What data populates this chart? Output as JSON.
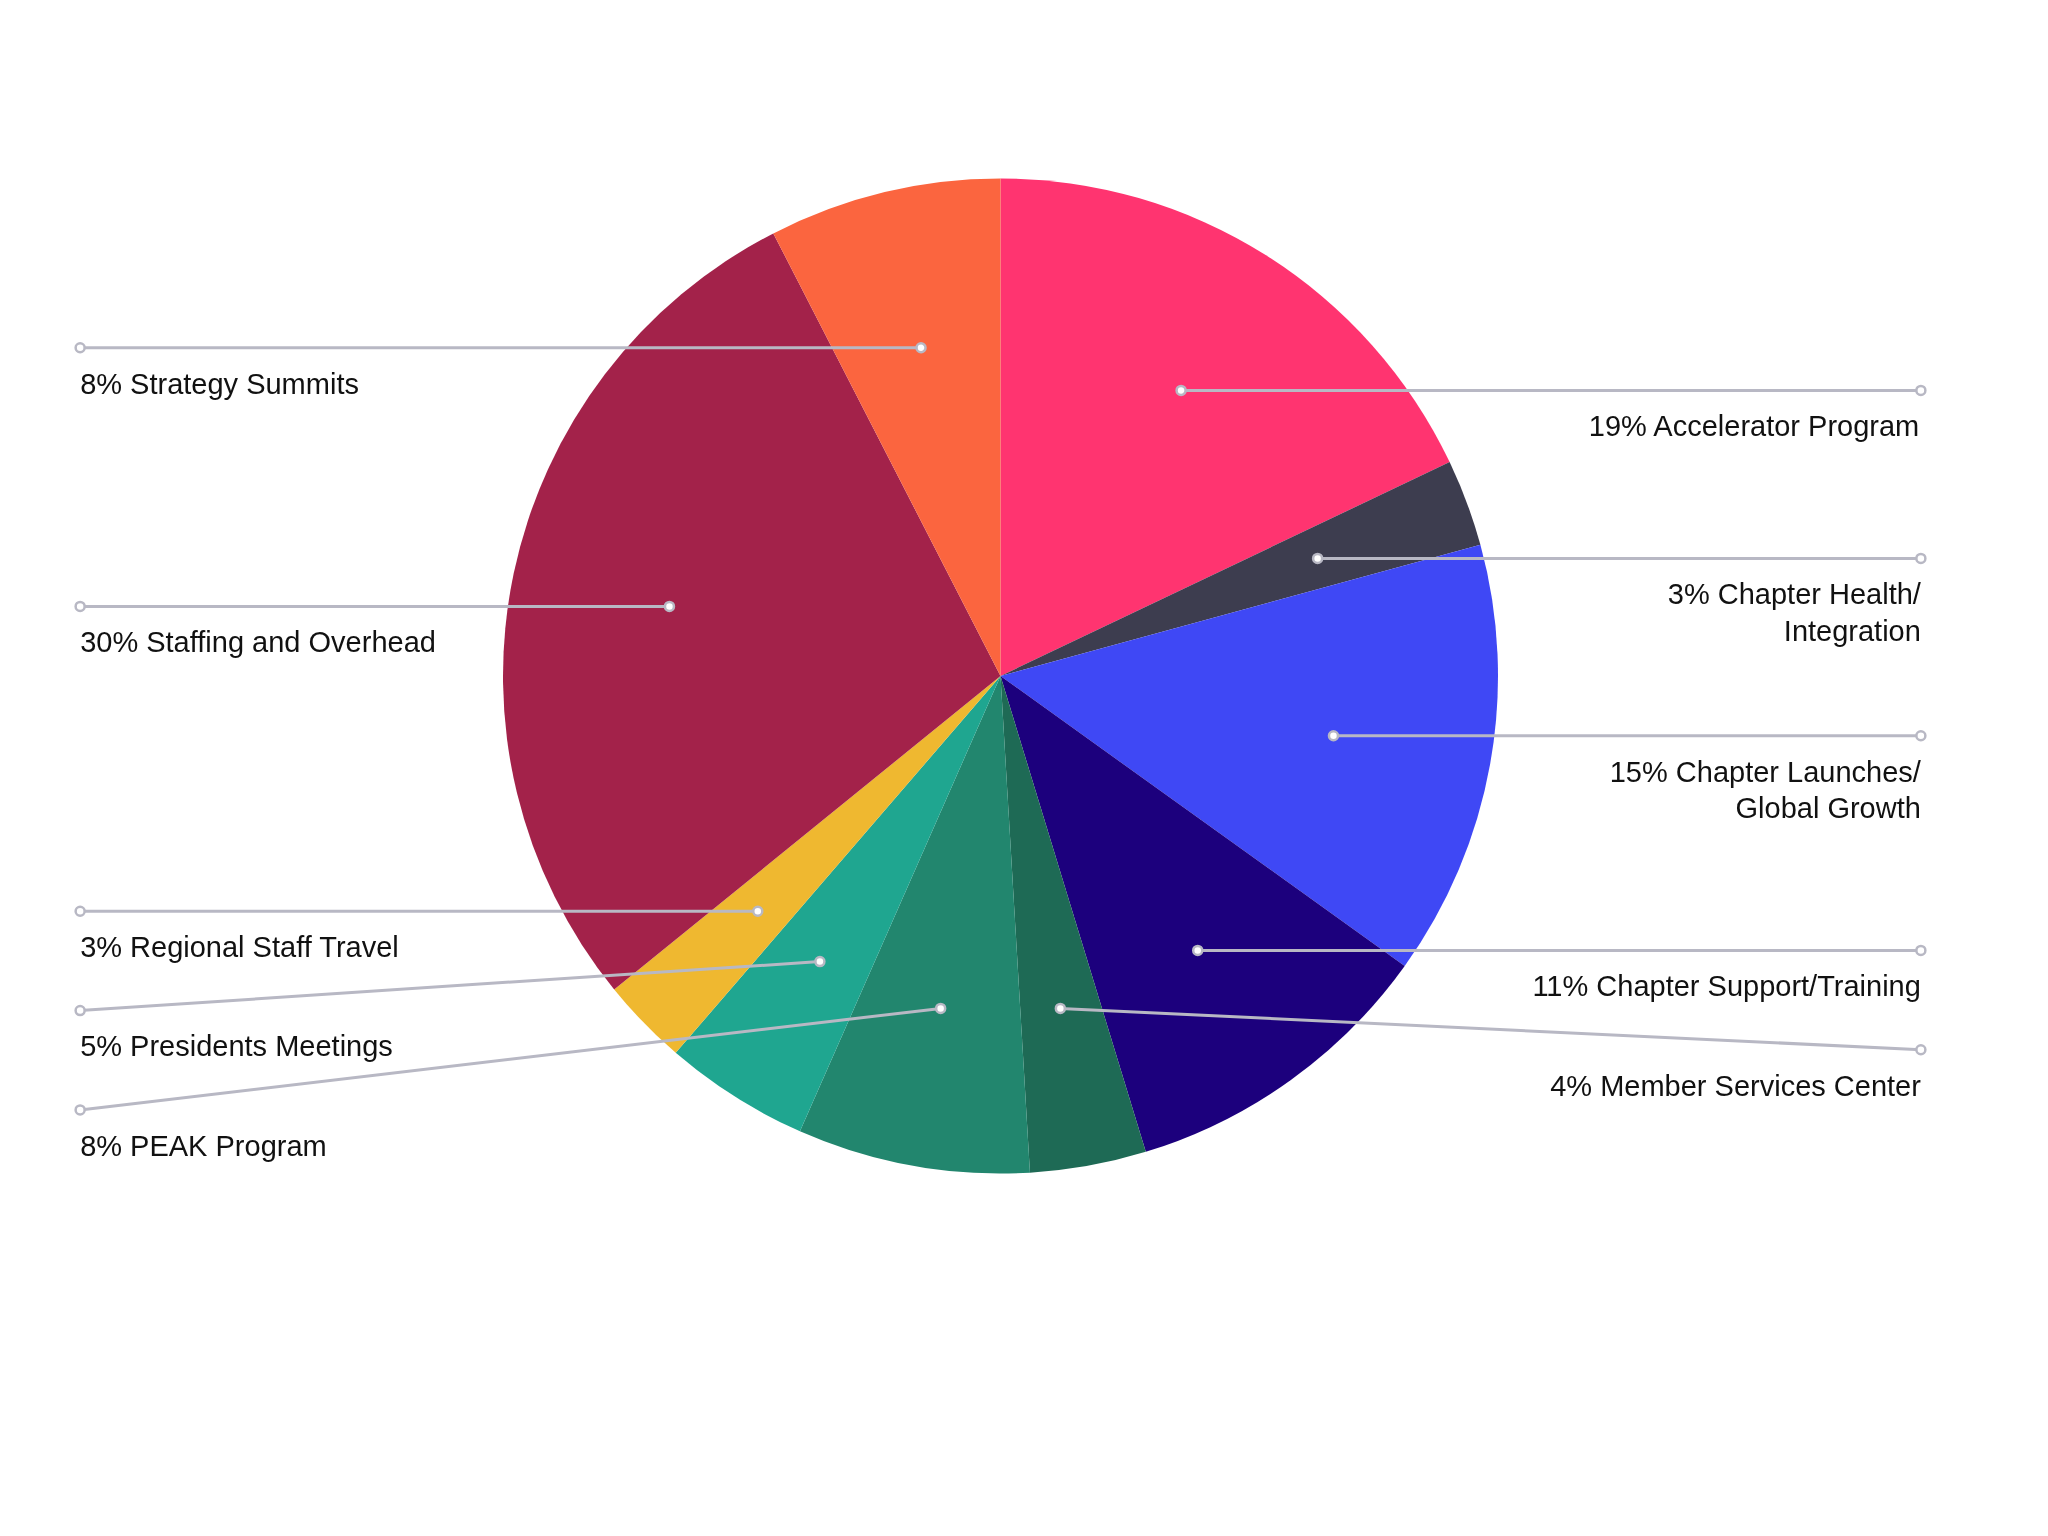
{
  "chart_data": {
    "type": "pie",
    "categories": [
      "Accelerator Program",
      "Chapter Health/\nIntegration",
      "Chapter Launches/\nGlobal Growth",
      "Chapter Support/Training",
      "Member Services Center",
      "PEAK Program",
      "Presidents Meetings",
      "Regional Staff Travel",
      "Staffing and Overhead",
      "Strategy Summits"
    ],
    "values": [
      19,
      3,
      15,
      11,
      4,
      8,
      5,
      3,
      30,
      8
    ],
    "value_labels": [
      "19%",
      "3%",
      "15%",
      "11%",
      "4%",
      "8%",
      "5%",
      "3%",
      "30%",
      "8%"
    ],
    "colors": [
      "#ff3470",
      "#3d3d4f",
      "#3f48f5",
      "#1c007d",
      "#1e6a55",
      "#22866e",
      "#1fa690",
      "#efb830",
      "#a3224a",
      "#fb653f"
    ]
  }
}
